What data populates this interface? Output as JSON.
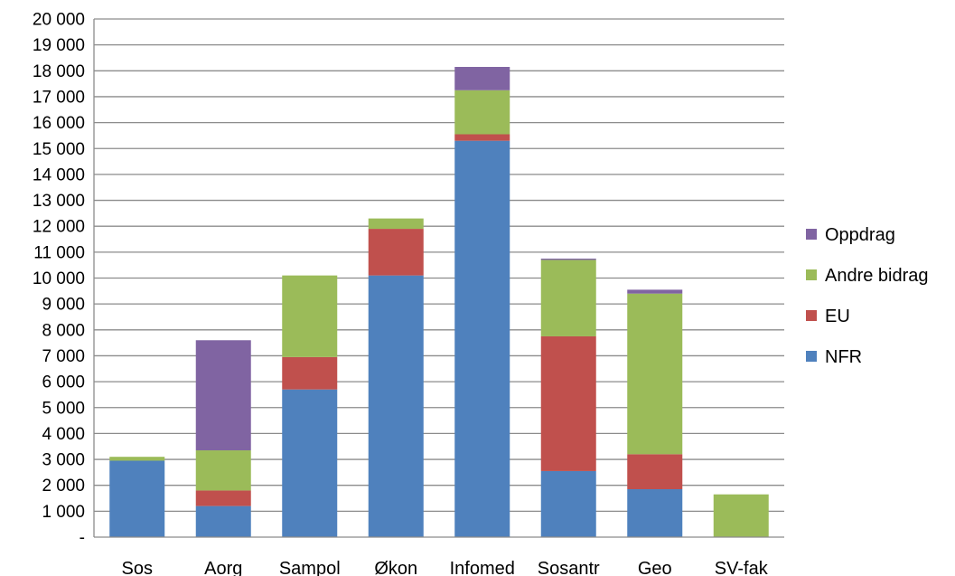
{
  "chart_data": {
    "type": "bar",
    "stacked": true,
    "title": "",
    "xlabel": "",
    "ylabel": "",
    "categories": [
      "Sos",
      "Aorg",
      "Sampol",
      "Økon",
      "Infomed",
      "Sosantr",
      "Geo",
      "SV-fak"
    ],
    "series": [
      {
        "name": "NFR",
        "color": "#4f81bd",
        "values": [
          2950,
          1200,
          5700,
          10100,
          15300,
          2550,
          1850,
          0
        ]
      },
      {
        "name": "EU",
        "color": "#c0504d",
        "values": [
          0,
          600,
          1250,
          1800,
          250,
          5200,
          1350,
          0
        ]
      },
      {
        "name": "Andre bidrag",
        "color": "#9bbb59",
        "values": [
          150,
          1550,
          3150,
          400,
          1700,
          2950,
          6200,
          1650
        ]
      },
      {
        "name": "Oppdrag",
        "color": "#8064a2",
        "values": [
          0,
          4250,
          0,
          0,
          900,
          50,
          150,
          0
        ]
      }
    ],
    "ylim": [
      0,
      20000
    ],
    "yticks": [
      0,
      1000,
      2000,
      3000,
      4000,
      5000,
      6000,
      7000,
      8000,
      9000,
      10000,
      11000,
      12000,
      13000,
      14000,
      15000,
      16000,
      17000,
      18000,
      19000,
      20000
    ],
    "ytick_labels": [
      "-",
      "1 000",
      "2 000",
      "3 000",
      "4 000",
      "5 000",
      "6 000",
      "7 000",
      "8 000",
      "9 000",
      "10 000",
      "11 000",
      "12 000",
      "13 000",
      "14 000",
      "15 000",
      "16 000",
      "17 000",
      "18 000",
      "19 000",
      "20 000"
    ],
    "legend_order": [
      "Oppdrag",
      "Andre bidrag",
      "EU",
      "NFR"
    ],
    "legend_position": "right",
    "grid": true
  }
}
